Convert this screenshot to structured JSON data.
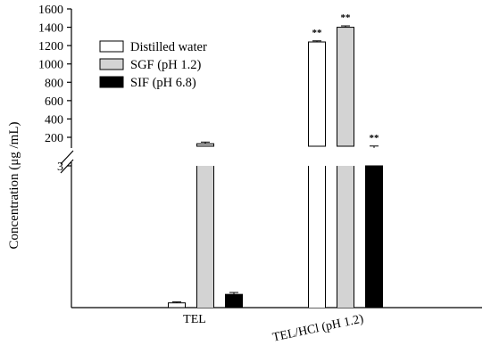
{
  "chart_data": {
    "type": "bar",
    "ylabel": "Concentration (μg /mL)",
    "categories": [
      "TEL",
      "TEL/HCl (pH 1.2)"
    ],
    "upper_axis": {
      "range": [
        200,
        1600
      ],
      "ticks": [
        "200",
        "400",
        "600",
        "800",
        "1000",
        "1200",
        "1400",
        "1600"
      ]
    },
    "lower_axis": {
      "range": [
        0,
        3
      ],
      "ticks": [
        "3"
      ]
    },
    "series": [
      {
        "name": "Distilled water",
        "color": "#ffffff",
        "values": [
          0.1,
          1240
        ],
        "errors": [
          0.02,
          12
        ],
        "annotations": [
          "",
          "**"
        ]
      },
      {
        "name": "SGF (pH 1.2)",
        "color": "#d3d3d3",
        "values": [
          130,
          1400
        ],
        "errors": [
          18,
          15
        ],
        "annotations": [
          "",
          "**"
        ]
      },
      {
        "name": "SIF (pH 6.8)",
        "color": "#000000",
        "values": [
          0.28,
          85
        ],
        "errors": [
          0.04,
          20
        ],
        "annotations": [
          "",
          "**"
        ]
      }
    ],
    "legend_position": "top-left",
    "grid": false
  }
}
